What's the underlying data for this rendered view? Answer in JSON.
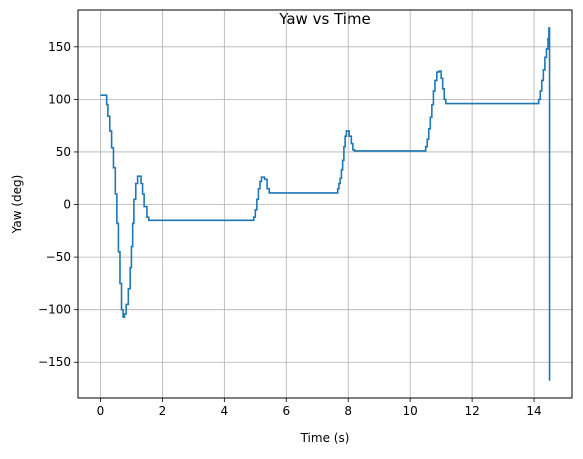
{
  "chart_data": {
    "type": "line",
    "title": "Yaw vs Time",
    "xlabel": "Time (s)",
    "ylabel": "Yaw (deg)",
    "xlim": [
      -0.725,
      15.225
    ],
    "ylim": [
      -184.0,
      185.0
    ],
    "x_ticks": [
      0,
      2,
      4,
      6,
      8,
      10,
      12,
      14
    ],
    "x_tick_labels": [
      "0",
      "2",
      "4",
      "6",
      "8",
      "10",
      "12",
      "14"
    ],
    "y_ticks": [
      -150,
      -100,
      -50,
      0,
      50,
      100,
      150
    ],
    "y_tick_labels": [
      "−150",
      "−100",
      "−50",
      "0",
      "50",
      "100",
      "150"
    ],
    "grid": true,
    "line_color": "#1f77b4",
    "series": [
      {
        "x": [
          0.0,
          0.18,
          0.2,
          0.24,
          0.3,
          0.36,
          0.42,
          0.48,
          0.53,
          0.58,
          0.63,
          0.68,
          0.73,
          0.78,
          0.83,
          0.9,
          0.96,
          1.0,
          1.04,
          1.08,
          1.14,
          1.2,
          1.26,
          1.31,
          1.36,
          1.41,
          1.5,
          1.56,
          1.6,
          1.64,
          1.68,
          1.75,
          1.9,
          4.9,
          4.95,
          5.0,
          5.05,
          5.1,
          5.15,
          5.2,
          5.3,
          5.38,
          5.45,
          7.6,
          7.66,
          7.7,
          7.74,
          7.78,
          7.82,
          7.86,
          7.9,
          7.94,
          7.98,
          8.03,
          8.1,
          8.15,
          8.2,
          8.3,
          10.45,
          10.5,
          10.55,
          10.6,
          10.65,
          10.7,
          10.75,
          10.8,
          10.86,
          10.93,
          11.0,
          11.05,
          11.1,
          11.15,
          14.0,
          14.1,
          14.15,
          14.2,
          14.25,
          14.3,
          14.35,
          14.4,
          14.45,
          14.48,
          14.5,
          14.5,
          14.5,
          14.52
        ],
        "values": [
          104,
          104,
          95,
          84,
          70,
          54,
          35,
          10,
          -18,
          -45,
          -75,
          -100,
          -107,
          -104,
          -95,
          -80,
          -60,
          -40,
          -18,
          5,
          20,
          27,
          27,
          20,
          10,
          -2,
          -12,
          -15,
          -15,
          -15,
          -15,
          -15,
          -15,
          -15,
          -12,
          -5,
          5,
          15,
          22,
          26,
          24,
          15,
          11,
          11,
          15,
          20,
          25,
          33,
          42,
          55,
          65,
          70,
          70,
          65,
          58,
          52,
          51,
          51,
          51,
          55,
          62,
          72,
          83,
          95,
          108,
          118,
          126,
          127,
          120,
          110,
          100,
          96,
          96,
          96,
          100,
          108,
          118,
          128,
          140,
          148,
          158,
          168,
          168,
          -100,
          -167,
          -167
        ]
      }
    ]
  }
}
